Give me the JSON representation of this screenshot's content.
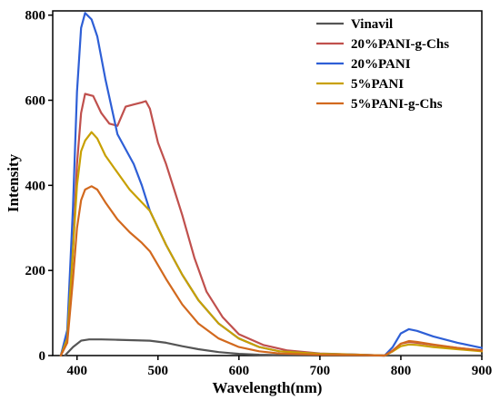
{
  "chart_data": {
    "type": "line",
    "xlabel": "Wavelength(nm)",
    "ylabel": "Intensity",
    "xlim": [
      370,
      900
    ],
    "ylim": [
      0,
      810
    ],
    "xticks": [
      400,
      500,
      600,
      700,
      800,
      900
    ],
    "xtick_labels": [
      "400",
      "500",
      "600",
      "700",
      "800",
      "900"
    ],
    "yticks": [
      0,
      200,
      400,
      600,
      800
    ],
    "ytick_labels": [
      "0",
      "200",
      "400",
      "600",
      "800"
    ],
    "grid": false,
    "legend_position": "top-right",
    "series": [
      {
        "name": "Vinavil",
        "color": "#555555",
        "x": [
          385,
          395,
          405,
          415,
          430,
          450,
          470,
          490,
          510,
          530,
          550,
          575,
          600,
          625,
          650,
          700,
          750,
          800,
          850,
          900
        ],
        "y": [
          0,
          20,
          35,
          38,
          38,
          37,
          36,
          35,
          30,
          22,
          15,
          8,
          4,
          2,
          1,
          0,
          0,
          0,
          0,
          0
        ]
      },
      {
        "name": "20%PANI-g-Chs",
        "color": "#c0504d",
        "x": [
          380,
          388,
          395,
          400,
          405,
          410,
          420,
          430,
          440,
          450,
          460,
          470,
          480,
          485,
          490,
          500,
          510,
          520,
          530,
          545,
          560,
          580,
          600,
          630,
          660,
          700,
          750,
          780,
          790,
          800,
          810,
          820,
          840,
          870,
          900
        ],
        "y": [
          0,
          50,
          250,
          450,
          570,
          615,
          610,
          570,
          545,
          540,
          585,
          590,
          595,
          598,
          580,
          500,
          450,
          390,
          330,
          230,
          150,
          90,
          50,
          25,
          12,
          5,
          2,
          0,
          10,
          28,
          32,
          30,
          25,
          18,
          12
        ]
      },
      {
        "name": "20%PANI",
        "color": "#2e5fd6",
        "x": [
          380,
          388,
          395,
          400,
          405,
          410,
          418,
          425,
          435,
          450,
          470,
          480,
          490,
          510,
          530,
          550,
          575,
          600,
          625,
          650,
          700,
          750,
          780,
          790,
          800,
          810,
          820,
          840,
          870,
          900
        ],
        "y": [
          0,
          60,
          350,
          620,
          770,
          805,
          790,
          750,
          650,
          520,
          450,
          400,
          340,
          260,
          190,
          130,
          75,
          40,
          20,
          10,
          4,
          2,
          0,
          20,
          52,
          62,
          58,
          45,
          30,
          18
        ]
      },
      {
        "name": "5%PANI",
        "color": "#c8a000",
        "x": [
          380,
          388,
          395,
          400,
          405,
          410,
          418,
          425,
          435,
          450,
          465,
          480,
          490,
          510,
          530,
          550,
          575,
          600,
          625,
          650,
          700,
          750,
          780,
          790,
          800,
          810,
          820,
          840,
          870,
          900
        ],
        "y": [
          0,
          40,
          250,
          400,
          480,
          505,
          525,
          510,
          470,
          430,
          390,
          360,
          340,
          260,
          190,
          130,
          75,
          40,
          20,
          10,
          4,
          2,
          0,
          10,
          22,
          26,
          25,
          20,
          15,
          10
        ]
      },
      {
        "name": "5%PANI-g-Chs",
        "color": "#d2691e",
        "x": [
          380,
          388,
          395,
          400,
          405,
          410,
          418,
          425,
          435,
          450,
          465,
          480,
          490,
          510,
          530,
          550,
          575,
          600,
          625,
          650,
          700,
          750,
          780,
          790,
          800,
          810,
          820,
          840,
          870,
          900
        ],
        "y": [
          0,
          30,
          180,
          300,
          365,
          390,
          398,
          390,
          360,
          320,
          290,
          265,
          245,
          180,
          120,
          75,
          40,
          20,
          10,
          5,
          2,
          1,
          0,
          12,
          28,
          34,
          32,
          26,
          18,
          12
        ]
      }
    ]
  }
}
